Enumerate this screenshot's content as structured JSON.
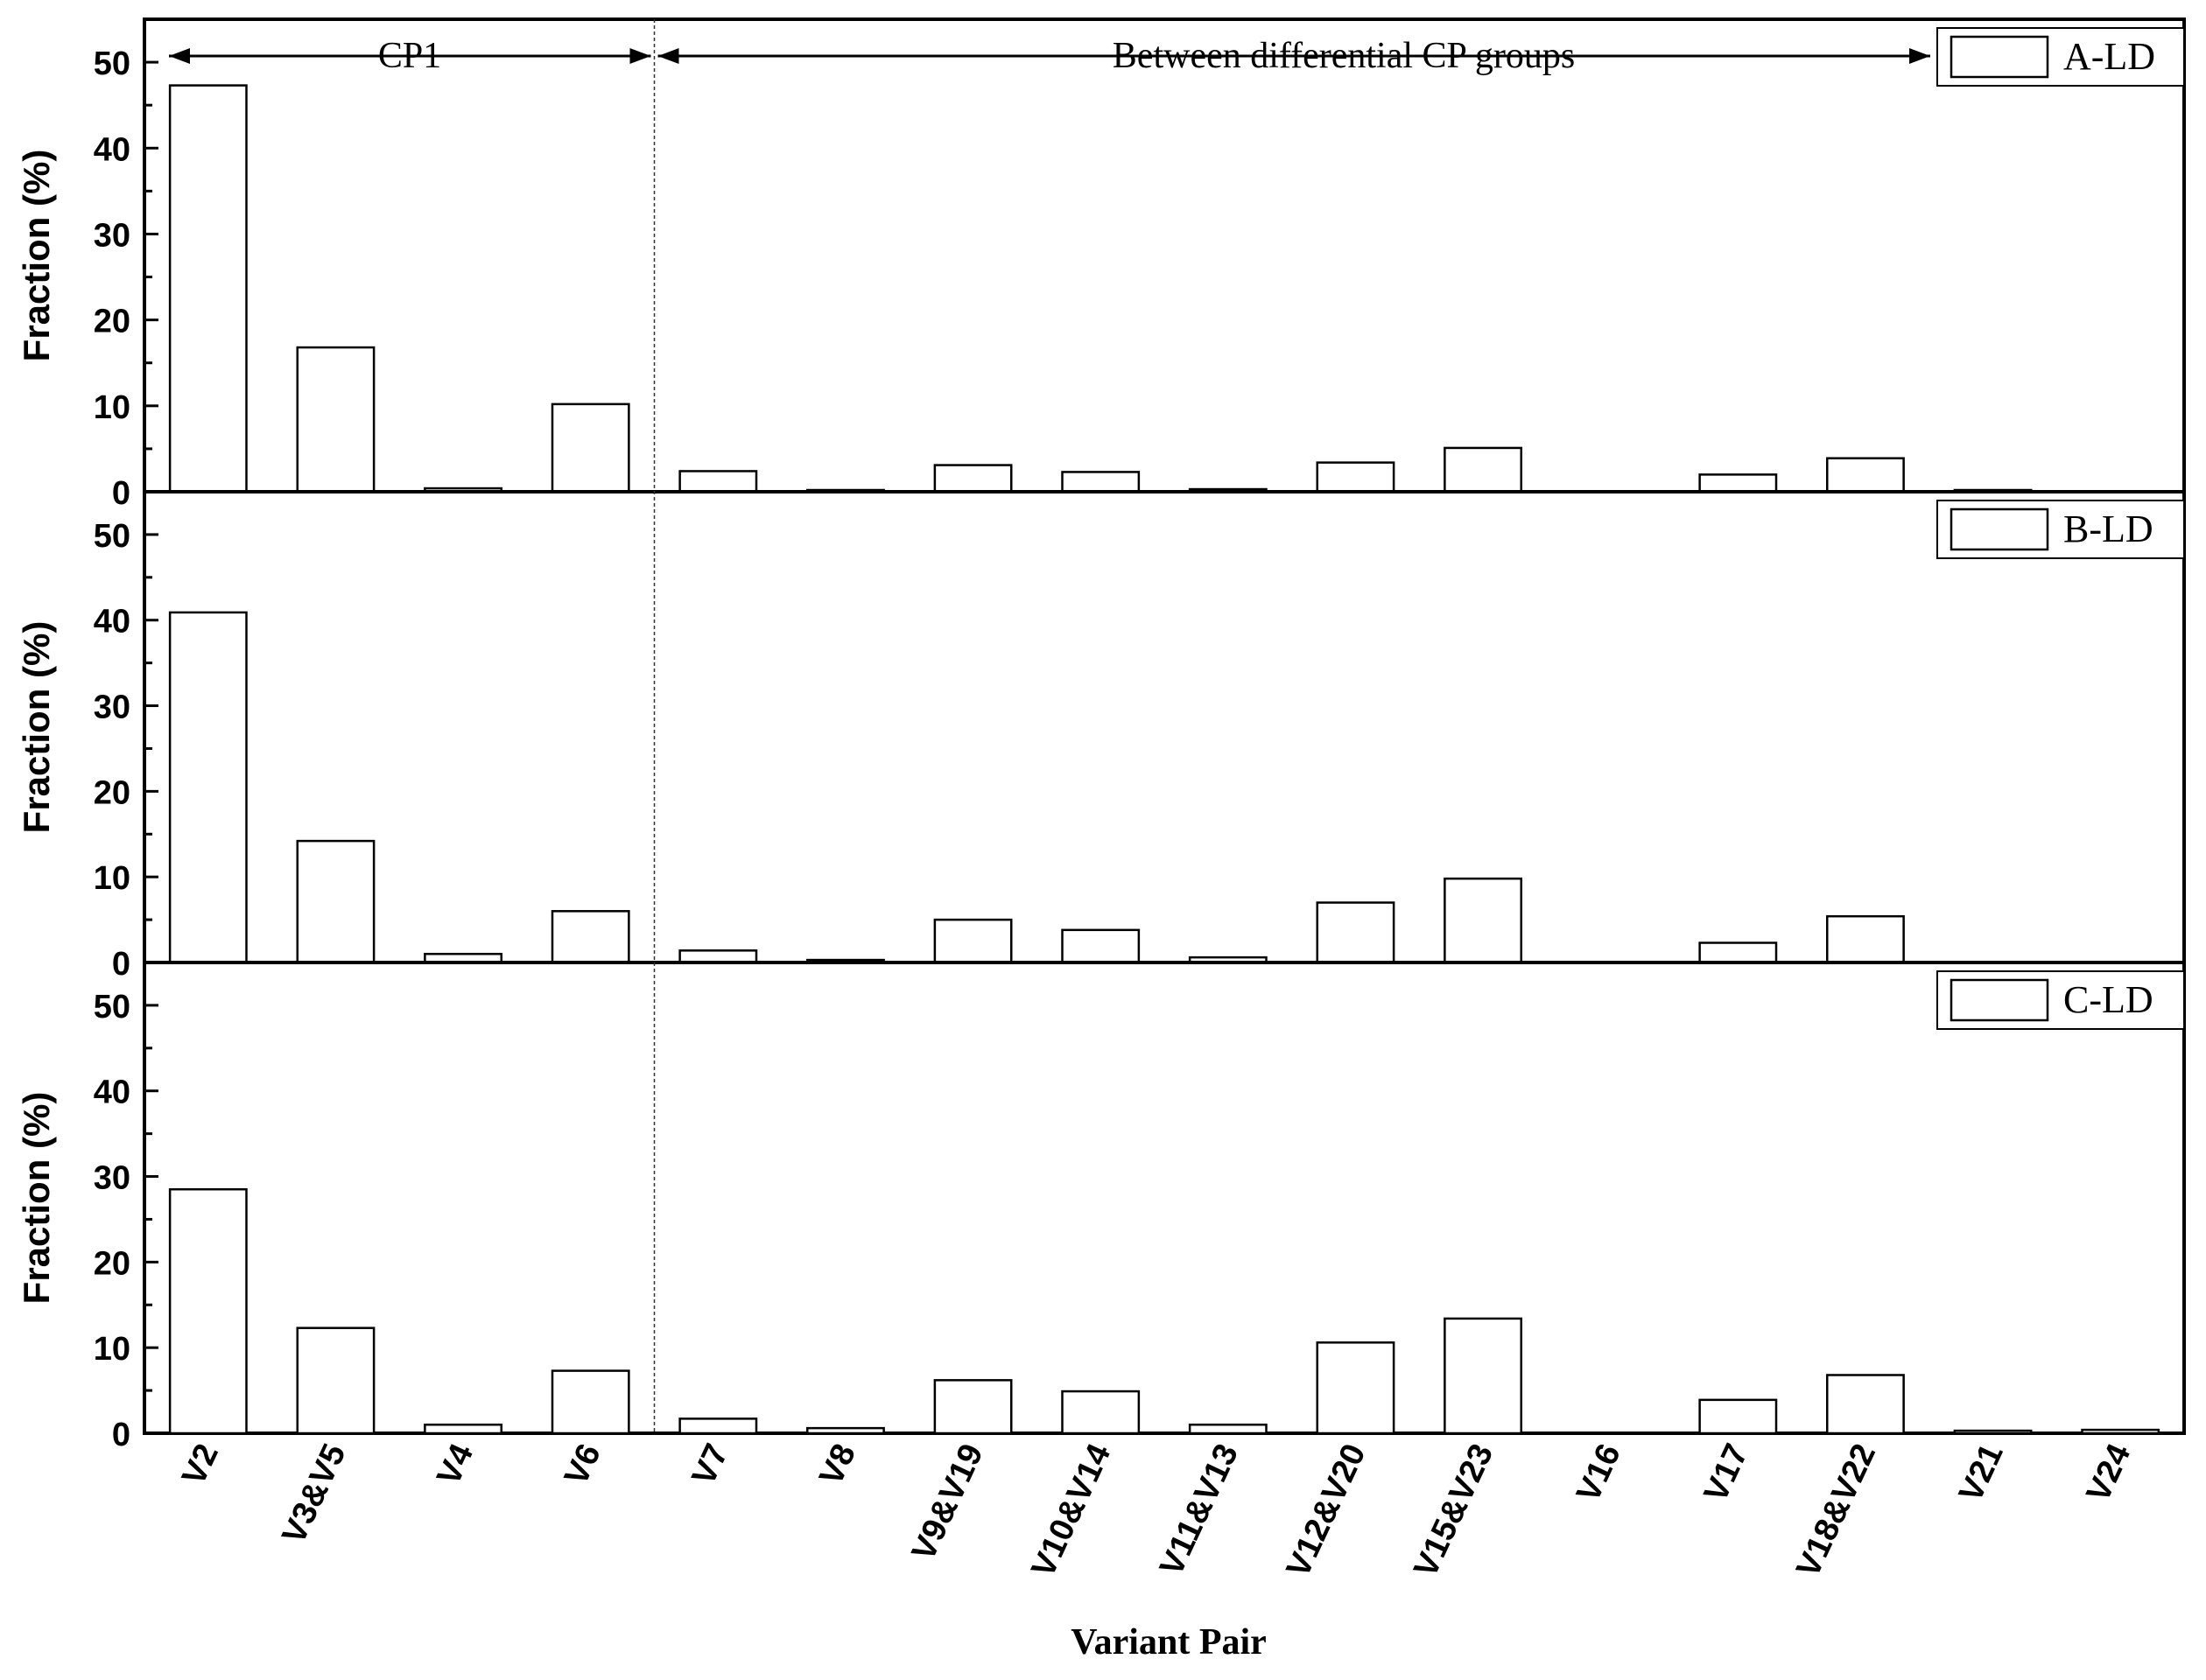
{
  "chart_data": {
    "type": "bar",
    "xlabel": "Variant Pair",
    "ylabel": "Fraction (%)",
    "ylim": [
      0,
      55
    ],
    "yticks": [
      "0",
      "10",
      "20",
      "30",
      "40",
      "50"
    ],
    "categories": [
      "V2",
      "V3&V5",
      "V4",
      "V6",
      "V7",
      "V8",
      "V9&V19",
      "V10&V14",
      "V11&V13",
      "V12&V20",
      "V15&V23",
      "V16",
      "V17",
      "V18&V22",
      "V21",
      "V24"
    ],
    "annotations": {
      "left": "CP1",
      "right": "Between differential CP groups"
    },
    "series": [
      {
        "name": "A-LD",
        "values": [
          47.3,
          16.8,
          0.4,
          10.2,
          2.4,
          0.2,
          3.1,
          2.3,
          0.3,
          3.4,
          5.1,
          0,
          2.0,
          3.9,
          0.2,
          0
        ]
      },
      {
        "name": "B-LD",
        "values": [
          40.9,
          14.2,
          1.0,
          6.0,
          1.4,
          0.3,
          5.0,
          3.8,
          0.6,
          7.0,
          9.8,
          0,
          2.3,
          5.4,
          0,
          0
        ]
      },
      {
        "name": "C-LD",
        "values": [
          28.5,
          12.3,
          1.0,
          7.3,
          1.7,
          0.6,
          6.2,
          4.9,
          1.0,
          10.6,
          13.4,
          0,
          3.9,
          6.8,
          0.3,
          0.4
        ]
      }
    ]
  }
}
